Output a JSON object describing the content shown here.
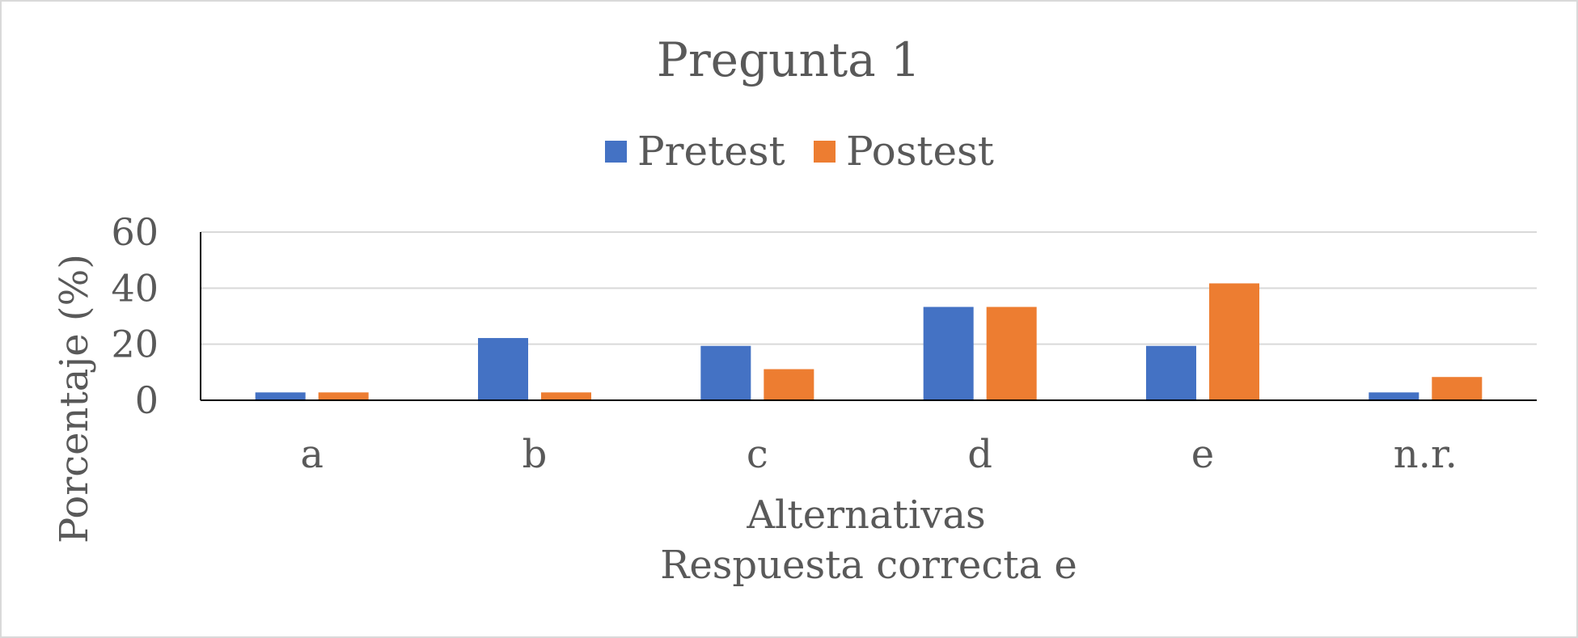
{
  "chart_data": {
    "type": "bar",
    "title": "Pregunta 1",
    "xlabel": "Alternativas",
    "xlabel_line2": "Respuesta correcta e",
    "ylabel": "Porcentaje (%)",
    "categories": [
      "a",
      "b",
      "c",
      "d",
      "e",
      "n.r."
    ],
    "series": [
      {
        "name": "Pretest",
        "color": "#4472c4",
        "values": [
          2.8,
          22.2,
          19.4,
          33.3,
          19.4,
          2.8
        ]
      },
      {
        "name": "Postest",
        "color": "#ed7d31",
        "values": [
          2.8,
          2.8,
          11.1,
          33.3,
          41.7,
          8.3
        ]
      }
    ],
    "ylim": [
      0,
      60
    ],
    "yticks": [
      "0",
      "20",
      "40",
      "60"
    ],
    "grid": true,
    "legend_position": "top"
  }
}
